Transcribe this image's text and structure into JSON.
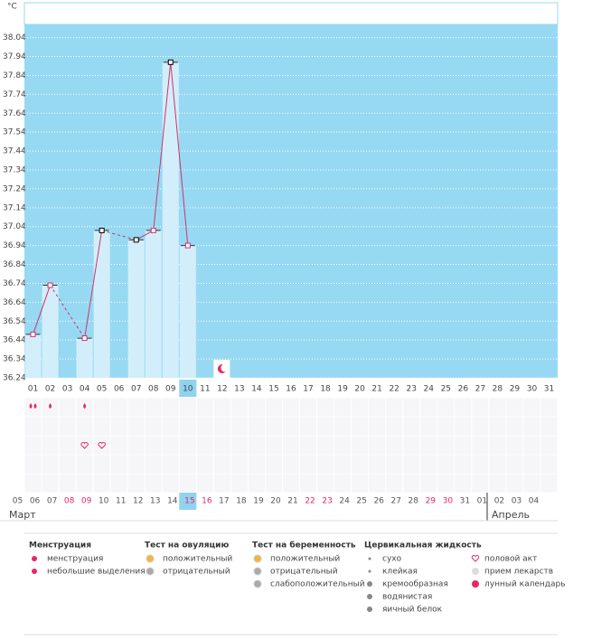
{
  "chart_data": {
    "type": "line",
    "y_unit": "°C",
    "categories": [
      "01",
      "02",
      "03",
      "04",
      "05",
      "06",
      "07",
      "08",
      "09",
      "10",
      "11",
      "12",
      "13",
      "14",
      "15",
      "16",
      "17",
      "18",
      "19",
      "20",
      "21",
      "22",
      "23",
      "24",
      "25",
      "26",
      "27",
      "28",
      "29",
      "30",
      "31"
    ],
    "values": [
      36.47,
      36.73,
      null,
      36.45,
      37.02,
      null,
      36.97,
      37.02,
      37.91,
      36.94,
      null,
      null,
      null,
      null,
      null,
      null,
      null,
      null,
      null,
      null,
      null,
      null,
      null,
      null,
      null,
      null,
      null,
      null,
      null,
      null,
      null
    ],
    "marker_colors": [
      "#d0336a",
      "#d0336a",
      null,
      "#d0336a",
      "#000000",
      null,
      "#000000",
      "#d0336a",
      "#000000",
      "#d0336a",
      null,
      null,
      null,
      null,
      null,
      null,
      null,
      null,
      null,
      null,
      null,
      null,
      null,
      null,
      null,
      null,
      null,
      null,
      null,
      null,
      null
    ],
    "line_color": "#d0336a",
    "bar_color": "#d3eefb",
    "background_color": "#97d9f3",
    "ylim": [
      36.24,
      38.11
    ],
    "yticks": [
      36.24,
      36.34,
      36.44,
      36.54,
      36.64,
      36.74,
      36.84,
      36.94,
      37.04,
      37.14,
      37.24,
      37.34,
      37.44,
      37.54,
      37.64,
      37.74,
      37.84,
      37.94,
      38.04
    ],
    "grid": true,
    "dates": [
      "05",
      "06",
      "07",
      "08",
      "09",
      "10",
      "11",
      "12",
      "13",
      "14",
      "15",
      "16",
      "17",
      "18",
      "19",
      "20",
      "21",
      "22",
      "23",
      "24",
      "25",
      "26",
      "27",
      "28",
      "29",
      "30",
      "31",
      "01",
      "02",
      "03",
      "04"
    ],
    "date_colors": [
      "#555",
      "#555",
      "#555",
      "#e8256a",
      "#e8256a",
      "#555",
      "#555",
      "#555",
      "#555",
      "#555",
      "#e8256a",
      "#e8256a",
      "#555",
      "#555",
      "#555",
      "#555",
      "#555",
      "#e8256a",
      "#e8256a",
      "#555",
      "#555",
      "#555",
      "#555",
      "#555",
      "#e8256a",
      "#e8256a",
      "#555",
      "#555",
      "#555",
      "#555",
      "#555"
    ],
    "months": [
      "Март",
      "Апрель"
    ]
  },
  "legend": [
    {
      "title": "Менструация",
      "items": [
        "менструация",
        "небольшие выделения"
      ]
    },
    {
      "title": "Тест на овуляцию",
      "items": [
        "положительный",
        "отрицательный"
      ]
    },
    {
      "title": "Тест на беременность",
      "items": [
        "положительный",
        "отрицательный",
        "слабоположительный"
      ]
    },
    {
      "title": "Цервикальная жидкость",
      "items": [
        "сухо",
        "клейкая",
        "кремообразная",
        "водянистая",
        "яичный белок"
      ]
    },
    {
      "items": [
        "половой акт",
        "прием лекарств",
        "лунный календарь"
      ]
    }
  ]
}
